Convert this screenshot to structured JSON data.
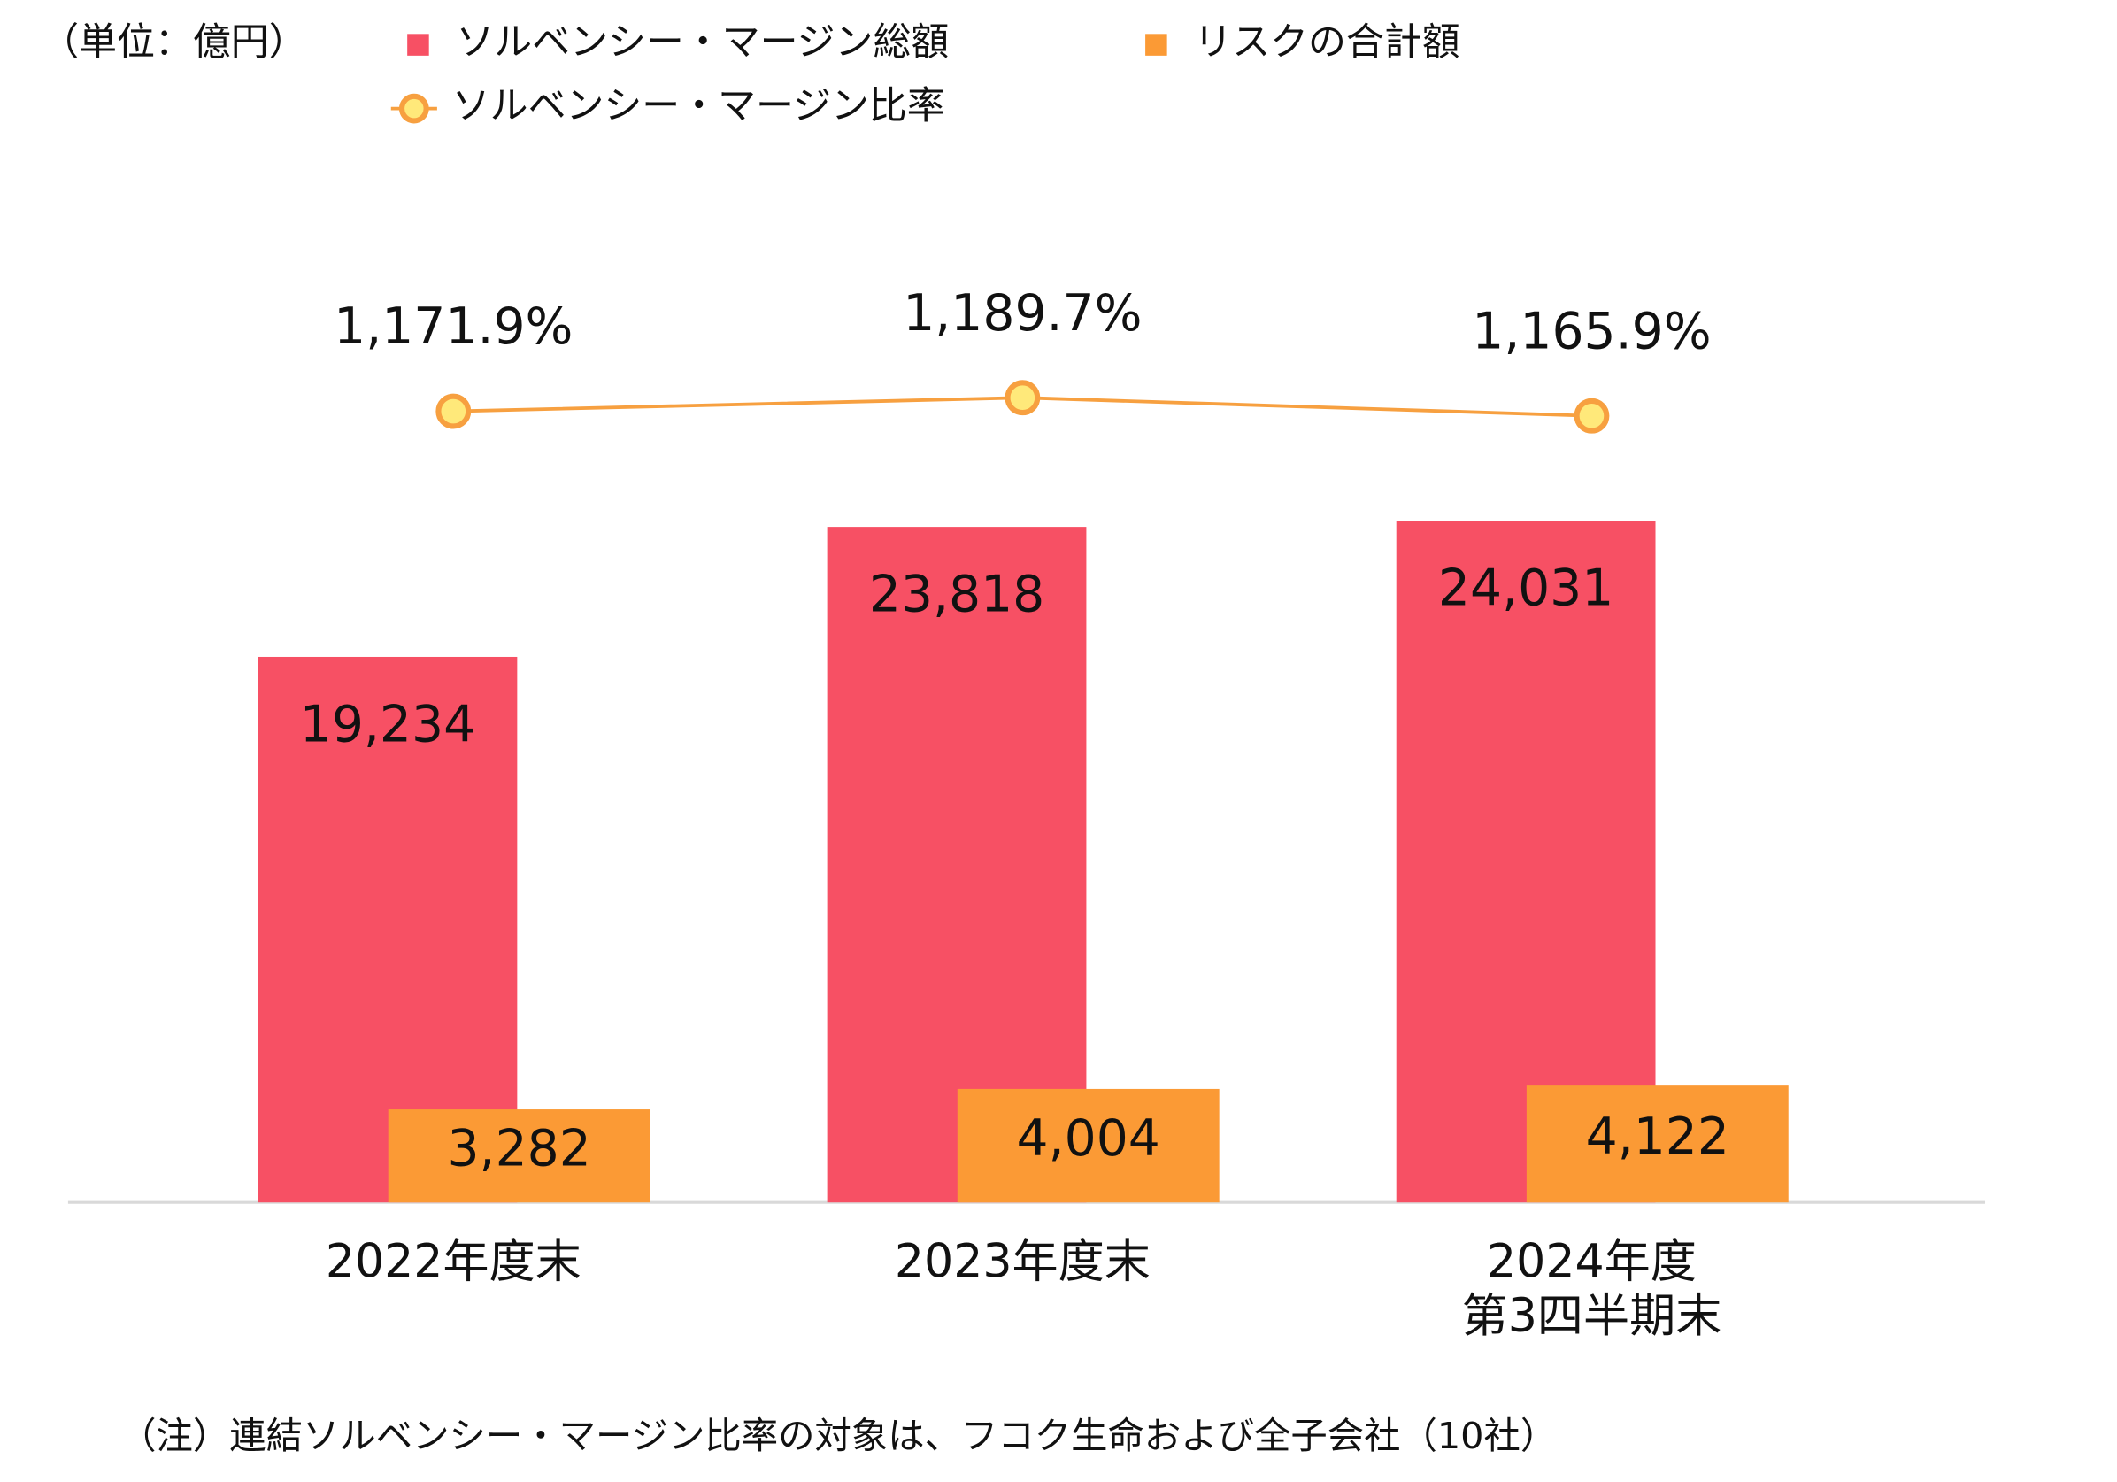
{
  "chart_data": {
    "type": "bar",
    "unit_label": "（単位：億円）",
    "categories": [
      "2022年度末",
      "2023年度末",
      "2024年度\n第3四半期末"
    ],
    "ylim": [
      0,
      40000
    ],
    "y2lim": [
      135,
      1622
    ],
    "series": [
      {
        "name": "ソルベンシー・マージン総額",
        "type": "bar",
        "color": "#f75064",
        "values": [
          19234,
          23818,
          24031
        ],
        "value_labels": [
          "19,234",
          "23,818",
          "24,031"
        ]
      },
      {
        "name": "リスクの合計額",
        "type": "bar",
        "color": "#fb9a35",
        "values": [
          3282,
          4004,
          4122
        ],
        "value_labels": [
          "3,282",
          "4,004",
          "4,122"
        ]
      },
      {
        "name": "ソルベンシー・マージン比率",
        "type": "line",
        "axis": "y2",
        "color": "#f7a040",
        "marker_fill": "#ffe97a",
        "values": [
          1171.9,
          1189.7,
          1165.9
        ],
        "value_labels": [
          "1,171.9%",
          "1,189.7%",
          "1,165.9%"
        ]
      }
    ],
    "note": "（注）連結ソルベンシー・マージン比率の対象は、フコク生命および全子会社（10社）"
  }
}
